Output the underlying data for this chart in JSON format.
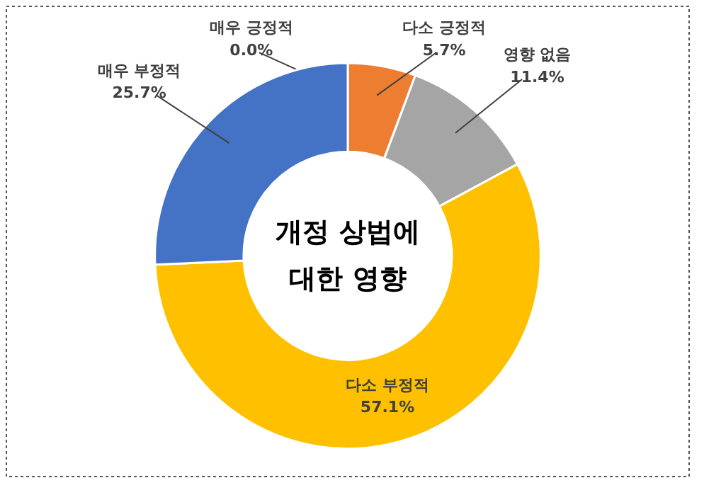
{
  "chart_data": {
    "type": "donut",
    "title": "개정 상법에\n대한 영향",
    "categories": [
      "매우 긍정적",
      "다소 긍정적",
      "영향 없음",
      "다소 부정적",
      "매우 부정적"
    ],
    "values": [
      0.0,
      5.7,
      11.4,
      57.1,
      25.7
    ],
    "colors": [
      "#5b9bd5",
      "#ed7d31",
      "#a5a5a5",
      "#ffc000",
      "#4472c4"
    ],
    "value_labels": [
      "0.0%",
      "5.7%",
      "11.4%",
      "57.1%",
      "25.7%"
    ],
    "legend": false
  }
}
